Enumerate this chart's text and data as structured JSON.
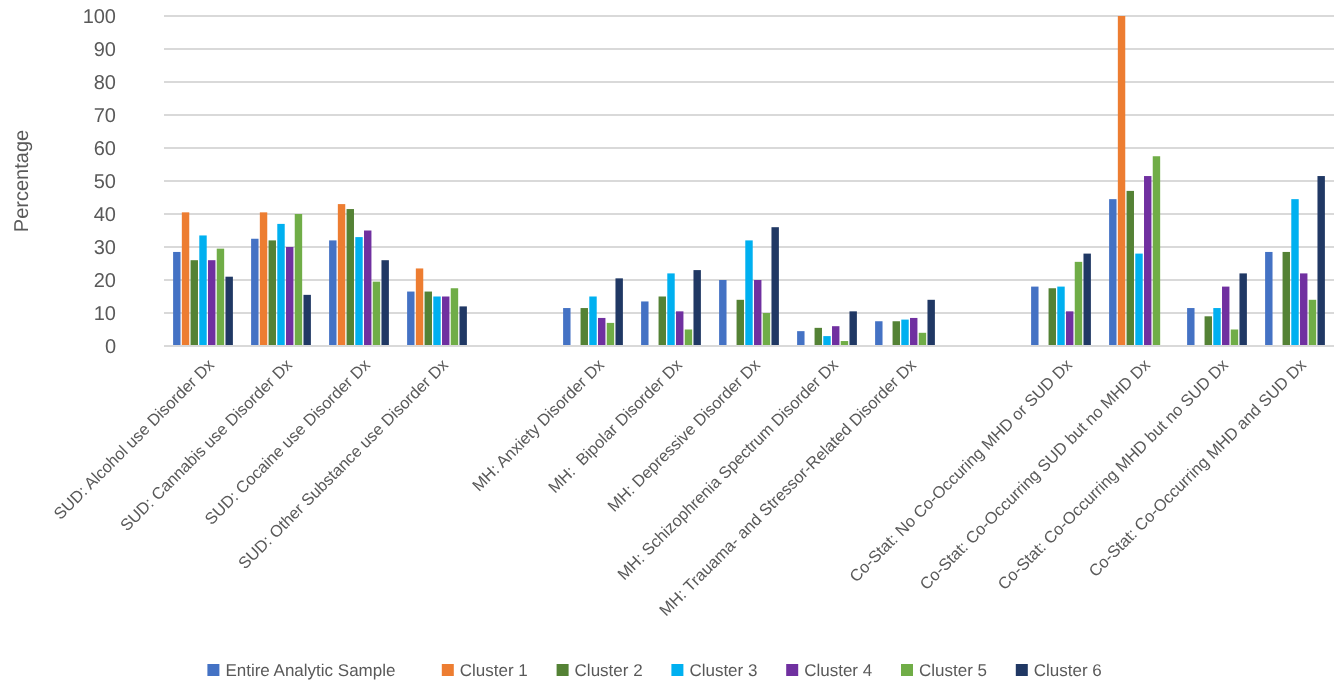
{
  "chart_data": {
    "type": "bar",
    "ylabel": "Percentage",
    "categories": [
      "SUD: Alcohol use Disorder Dx",
      "SUD: Cannabis use Disorder Dx",
      "SUD: Cocaine use Disorder Dx",
      "SUD: Other Substance use Disorder Dx",
      null,
      "MH: Anxiety Disorder Dx",
      "MH:  Bipolar Disorder Dx",
      "MH: Depressive Disorder Dx",
      "MH: Schizophrenia Spectrum Disorder Dx",
      "MH: Trauama- and Stressor-Related Disorder Dx",
      null,
      "Co-Stat: No Co-Occuring MHD or SUD Dx",
      "Co-Stat: Co-Occurring SUD but no MHD Dx",
      "Co-Stat: Co-Occurring MHD but no SUD Dx",
      "Co-Stat: Co-Occurring MHD and SUD Dx"
    ],
    "series": [
      {
        "name": "Entire Analytic Sample",
        "color": "#4472c4",
        "values": [
          28.5,
          32.5,
          32,
          16.5,
          null,
          11.5,
          13.5,
          20,
          4.5,
          7.5,
          null,
          18,
          44.5,
          11.5,
          28.5
        ]
      },
      {
        "name": "Cluster 1",
        "color": "#ed7d31",
        "values": [
          40.5,
          40.5,
          43,
          23.5,
          null,
          null,
          null,
          null,
          null,
          null,
          null,
          null,
          100,
          null,
          null
        ]
      },
      {
        "name": "Cluster 2",
        "color": "#548235",
        "values": [
          26,
          32,
          41.5,
          16.5,
          null,
          11.5,
          15,
          14,
          5.5,
          7.5,
          null,
          17.5,
          47,
          9,
          28.5
        ]
      },
      {
        "name": "Cluster 3",
        "color": "#00b0f0",
        "values": [
          33.5,
          37,
          33,
          15,
          null,
          15,
          22,
          32,
          3,
          8,
          null,
          18,
          28,
          11.5,
          44.5
        ]
      },
      {
        "name": "Cluster 4",
        "color": "#7030a0",
        "values": [
          26,
          30,
          35,
          15,
          null,
          8.5,
          10.5,
          20,
          6,
          8.5,
          null,
          10.5,
          51.5,
          18,
          22
        ]
      },
      {
        "name": "Cluster 5",
        "color": "#70ad47",
        "values": [
          29.5,
          40,
          19.5,
          17.5,
          null,
          7,
          5,
          10,
          1.5,
          4,
          null,
          25.5,
          57.5,
          5,
          14
        ]
      },
      {
        "name": "Cluster 6",
        "color": "#203864",
        "values": [
          21,
          15.5,
          26,
          12,
          null,
          20.5,
          23,
          36,
          10.5,
          14,
          null,
          28,
          null,
          22,
          51.5
        ]
      }
    ],
    "ylim": [
      0,
      100
    ],
    "yticks": [
      0,
      10,
      20,
      30,
      40,
      50,
      60,
      70,
      80,
      90,
      100
    ],
    "grid": "y",
    "legend": "bottom"
  }
}
